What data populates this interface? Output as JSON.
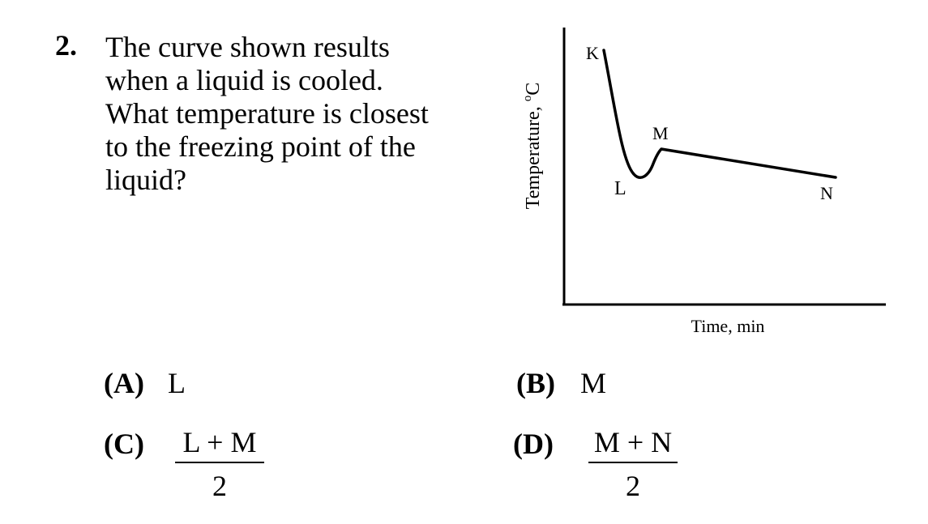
{
  "question": {
    "number": "2.",
    "lines": [
      "The curve shown results",
      "when a liquid is cooled.",
      "What temperature is closest",
      "to the freezing point of the",
      "liquid?"
    ]
  },
  "chart_data": {
    "type": "line",
    "xlabel": "Time, min",
    "ylabel_text": "Temperature, ",
    "ylabel_degree": "o",
    "ylabel_unit": "C",
    "grid": false,
    "point_labels": [
      "K",
      "L",
      "M",
      "N"
    ]
  },
  "choices": {
    "a": {
      "letter": "(A)",
      "value": "L"
    },
    "b": {
      "letter": "(B)",
      "value": "M"
    },
    "c": {
      "letter": "(C)",
      "numerator": "L + M",
      "denominator": "2"
    },
    "d": {
      "letter": "(D)",
      "numerator": "M + N",
      "denominator": "2"
    }
  }
}
